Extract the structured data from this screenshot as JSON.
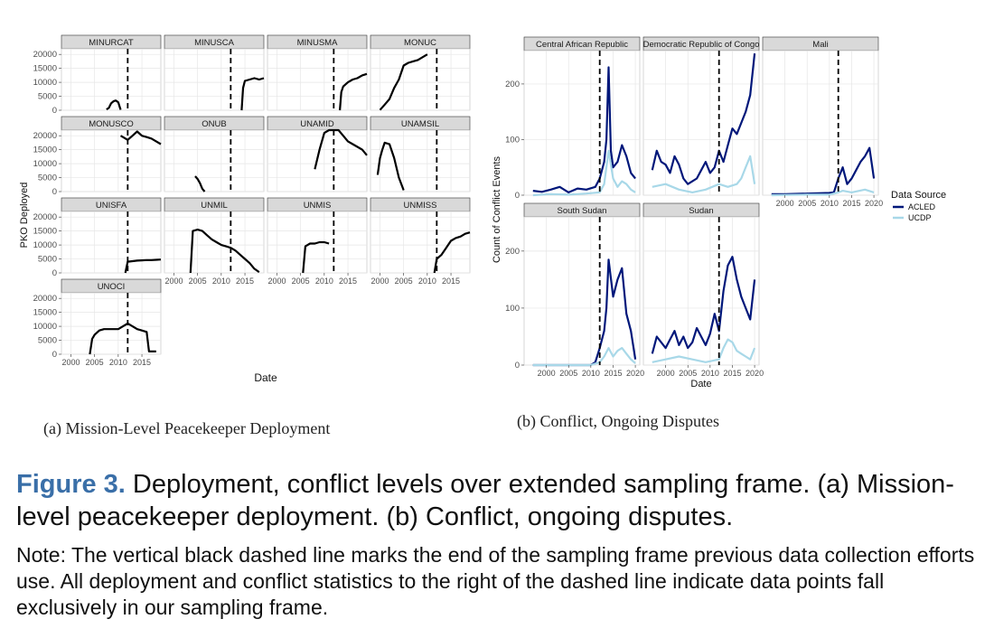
{
  "figure": {
    "label": "Figure 3.",
    "title": "Deployment, conflict levels over extended sampling frame. (a) Mission-level peacekeeper deployment. (b) Conflict, ongoing disputes.",
    "note": "Note: The vertical black dashed line marks the end of the sampling frame previous data collection efforts use. All deployment and conflict statistics to the right of the dashed line indicate data points fall exclusively in our sampling frame.",
    "subcaption_a": "(a)  Mission-Level Peacekeeper Deployment",
    "subcaption_b": "(b)  Conflict, Ongoing Disputes"
  },
  "chart_data": [
    {
      "type": "line",
      "facet": true,
      "xlabel": "Date",
      "ylabel": "PKO Deployed",
      "xlim": [
        1998,
        2019
      ],
      "ylim": [
        0,
        22000
      ],
      "xticks": [
        2000,
        2005,
        2010,
        2015
      ],
      "yticks": [
        0,
        5000,
        10000,
        15000,
        20000
      ],
      "vline": 2012,
      "grid": true,
      "panels": [
        {
          "name": "MINURCAT",
          "x": [
            2007.5,
            2008,
            2008.5,
            2009,
            2009.5,
            2010,
            2010.5
          ],
          "y": [
            300,
            800,
            2500,
            3200,
            3500,
            2800,
            200
          ]
        },
        {
          "name": "MINUSCA",
          "x": [
            2014.3,
            2014.6,
            2015,
            2016,
            2017,
            2018,
            2019
          ],
          "y": [
            0,
            8000,
            10500,
            11000,
            11500,
            11000,
            11500
          ]
        },
        {
          "name": "MINUSMA",
          "x": [
            2013.3,
            2013.6,
            2014,
            2015,
            2016,
            2017,
            2018,
            2019
          ],
          "y": [
            0,
            6500,
            8500,
            10000,
            11000,
            11500,
            12500,
            13000
          ]
        },
        {
          "name": "MONUC",
          "x": [
            2000,
            2001,
            2002,
            2003,
            2004,
            2005,
            2006,
            2007,
            2008,
            2009,
            2010
          ],
          "y": [
            100,
            2000,
            4000,
            8000,
            11000,
            16000,
            17000,
            17500,
            18000,
            19000,
            20000
          ]
        },
        {
          "name": "MONUSCO",
          "x": [
            2010.5,
            2011,
            2012,
            2013,
            2014,
            2015,
            2016,
            2017,
            2018,
            2019
          ],
          "y": [
            20000,
            19500,
            18500,
            20000,
            21500,
            20000,
            19500,
            19000,
            18000,
            17000
          ]
        },
        {
          "name": "ONUB",
          "x": [
            2004.5,
            2005,
            2005.5,
            2006,
            2006.5
          ],
          "y": [
            5500,
            4500,
            3000,
            1000,
            0
          ]
        },
        {
          "name": "UNAMID",
          "x": [
            2008,
            2009,
            2010,
            2011,
            2012,
            2013,
            2014,
            2015,
            2016,
            2017,
            2018,
            2019
          ],
          "y": [
            8000,
            15000,
            21000,
            23000,
            24500,
            23000,
            20000,
            18000,
            17000,
            16000,
            15000,
            13000
          ]
        },
        {
          "name": "UNAMSIL",
          "x": [
            1999.5,
            2000,
            2000.5,
            2001,
            2002,
            2003,
            2004,
            2005
          ],
          "y": [
            6000,
            12000,
            15000,
            17500,
            17000,
            12000,
            5000,
            500
          ]
        },
        {
          "name": "UNISFA",
          "x": [
            2011.5,
            2012,
            2013,
            2014,
            2015,
            2016,
            2017,
            2018,
            2019
          ],
          "y": [
            0,
            4000,
            4200,
            4400,
            4500,
            4600,
            4600,
            4700,
            4800
          ]
        },
        {
          "name": "UNMIL",
          "x": [
            2003.5,
            2004,
            2005,
            2006,
            2007,
            2008,
            2009,
            2010,
            2011,
            2012,
            2013,
            2014,
            2015,
            2016,
            2017,
            2018
          ],
          "y": [
            0,
            15000,
            15500,
            15000,
            13500,
            12000,
            11000,
            10000,
            9500,
            9000,
            8000,
            6500,
            5000,
            3500,
            1500,
            300
          ]
        },
        {
          "name": "UNMIS",
          "x": [
            2005.5,
            2006,
            2007,
            2008,
            2009,
            2010,
            2011
          ],
          "y": [
            0,
            9500,
            10500,
            10500,
            11000,
            11000,
            10500
          ]
        },
        {
          "name": "UNMISS",
          "x": [
            2011.5,
            2012,
            2013,
            2014,
            2015,
            2016,
            2017,
            2018,
            2019
          ],
          "y": [
            0,
            5000,
            6500,
            9000,
            11500,
            12500,
            13000,
            14000,
            14500
          ]
        },
        {
          "name": "UNOCI",
          "x": [
            2004,
            2004.5,
            2005,
            2006,
            2007,
            2008,
            2009,
            2010,
            2011,
            2012,
            2012.5,
            2013,
            2014,
            2015,
            2016,
            2016.5,
            2017,
            2018
          ],
          "y": [
            0,
            5500,
            7000,
            8500,
            9000,
            9000,
            9000,
            9000,
            10000,
            11000,
            10500,
            10000,
            9000,
            8500,
            8000,
            1000,
            1000,
            1000
          ]
        }
      ]
    },
    {
      "type": "line",
      "facet": true,
      "xlabel": "Date",
      "ylabel": "Count of Conflict Events",
      "xlim": [
        1995,
        2021
      ],
      "ylim": [
        0,
        260
      ],
      "xticks": [
        2000,
        2005,
        2010,
        2015,
        2020
      ],
      "yticks": [
        0,
        100,
        200
      ],
      "vline": 2012,
      "grid": true,
      "legend": {
        "title": "Data Source",
        "position": "right",
        "entries": [
          {
            "name": "ACLED",
            "color": "#00177a"
          },
          {
            "name": "UCDP",
            "color": "#a8d8e8"
          }
        ]
      },
      "panels": [
        {
          "name": "Central African Republic",
          "series": [
            {
              "name": "ACLED",
              "x": [
                1997,
                1999,
                2001,
                2003,
                2005,
                2007,
                2009,
                2011,
                2012,
                2013,
                2013.5,
                2014,
                2014.5,
                2015,
                2016,
                2017,
                2018,
                2019,
                2020
              ],
              "y": [
                8,
                6,
                10,
                15,
                5,
                12,
                10,
                15,
                30,
                60,
                100,
                230,
                80,
                50,
                60,
                90,
                70,
                40,
                30
              ]
            },
            {
              "name": "UCDP",
              "x": [
                1997,
                2001,
                2005,
                2009,
                2012,
                2013,
                2014,
                2015,
                2016,
                2017,
                2018,
                2019,
                2020
              ],
              "y": [
                0,
                2,
                1,
                3,
                5,
                20,
                80,
                30,
                15,
                25,
                20,
                10,
                5
              ]
            }
          ]
        },
        {
          "name": "Democratic Republic of Congo",
          "series": [
            {
              "name": "ACLED",
              "x": [
                1997,
                1998,
                1999,
                2000,
                2001,
                2002,
                2003,
                2004,
                2005,
                2006,
                2007,
                2008,
                2009,
                2010,
                2011,
                2012,
                2013,
                2014,
                2015,
                2016,
                2017,
                2018,
                2019,
                2020
              ],
              "y": [
                45,
                80,
                60,
                55,
                40,
                70,
                55,
                30,
                20,
                25,
                30,
                45,
                60,
                40,
                50,
                80,
                60,
                90,
                120,
                110,
                130,
                150,
                180,
                255
              ]
            },
            {
              "name": "UCDP",
              "x": [
                1997,
                2000,
                2003,
                2006,
                2009,
                2012,
                2014,
                2016,
                2017,
                2018,
                2019,
                2020
              ],
              "y": [
                15,
                20,
                10,
                5,
                10,
                20,
                15,
                20,
                30,
                50,
                70,
                20
              ]
            }
          ]
        },
        {
          "name": "Mali",
          "series": [
            {
              "name": "ACLED",
              "x": [
                1997,
                2000,
                2005,
                2010,
                2011,
                2012,
                2013,
                2014,
                2015,
                2016,
                2017,
                2018,
                2019,
                2020
              ],
              "y": [
                2,
                2,
                3,
                4,
                5,
                30,
                50,
                20,
                30,
                45,
                60,
                70,
                85,
                30
              ]
            },
            {
              "name": "UCDP",
              "x": [
                1997,
                2005,
                2010,
                2012,
                2013,
                2015,
                2018,
                2020
              ],
              "y": [
                0,
                1,
                1,
                5,
                8,
                5,
                10,
                5
              ]
            }
          ]
        },
        {
          "name": "South Sudan",
          "series": [
            {
              "name": "ACLED",
              "x": [
                1997,
                2005,
                2010,
                2011,
                2012,
                2013,
                2013.5,
                2014,
                2015,
                2016,
                2017,
                2018,
                2019,
                2020
              ],
              "y": [
                0,
                0,
                0,
                5,
                30,
                60,
                100,
                185,
                120,
                150,
                170,
                90,
                60,
                10
              ]
            },
            {
              "name": "UCDP",
              "x": [
                1997,
                2005,
                2010,
                2012,
                2013,
                2014,
                2015,
                2016,
                2017,
                2018,
                2019,
                2020
              ],
              "y": [
                0,
                0,
                0,
                5,
                15,
                30,
                15,
                25,
                30,
                20,
                10,
                3
              ]
            }
          ]
        },
        {
          "name": "Sudan",
          "series": [
            {
              "name": "ACLED",
              "x": [
                1997,
                1998,
                1999,
                2000,
                2001,
                2002,
                2003,
                2004,
                2005,
                2006,
                2007,
                2008,
                2009,
                2010,
                2011,
                2012,
                2013,
                2014,
                2015,
                2016,
                2017,
                2018,
                2019,
                2020
              ],
              "y": [
                20,
                50,
                40,
                30,
                45,
                60,
                35,
                50,
                30,
                40,
                65,
                50,
                35,
                55,
                90,
                60,
                130,
                175,
                190,
                150,
                120,
                100,
                80,
                150
              ]
            },
            {
              "name": "UCDP",
              "x": [
                1997,
                2000,
                2003,
                2006,
                2009,
                2012,
                2013,
                2014,
                2015,
                2016,
                2017,
                2018,
                2019,
                2020
              ],
              "y": [
                5,
                10,
                15,
                10,
                5,
                10,
                30,
                45,
                40,
                25,
                20,
                15,
                10,
                30
              ]
            }
          ]
        }
      ]
    }
  ]
}
